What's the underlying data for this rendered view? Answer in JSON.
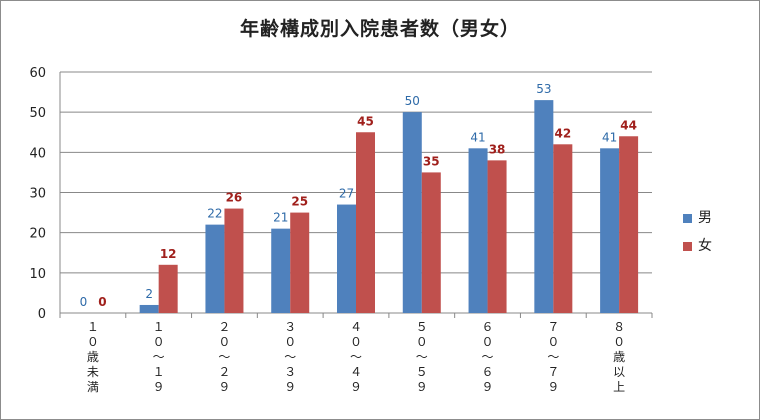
{
  "chart_data": {
    "type": "bar",
    "title": "年齢構成別入院患者数（男女）",
    "categories": [
      "１０歳未満",
      "１０～１９",
      "２０～２９",
      "３０～３９",
      "４０～４９",
      "５０～５９",
      "６０～６９",
      "７０～７９",
      "８０歳以上"
    ],
    "series": [
      {
        "name": "男",
        "values": [
          0,
          2,
          22,
          21,
          27,
          50,
          41,
          53,
          41
        ],
        "color": "#4f81bd",
        "label_color": "#2e6aa8"
      },
      {
        "name": "女",
        "values": [
          0,
          12,
          26,
          25,
          45,
          35,
          38,
          42,
          44
        ],
        "color": "#c0504d",
        "label_color": "#a0201c"
      }
    ],
    "ylim": [
      0,
      60
    ],
    "yticks": [
      0,
      10,
      20,
      30,
      40,
      50,
      60
    ],
    "grid": true,
    "legend_position": "right"
  }
}
